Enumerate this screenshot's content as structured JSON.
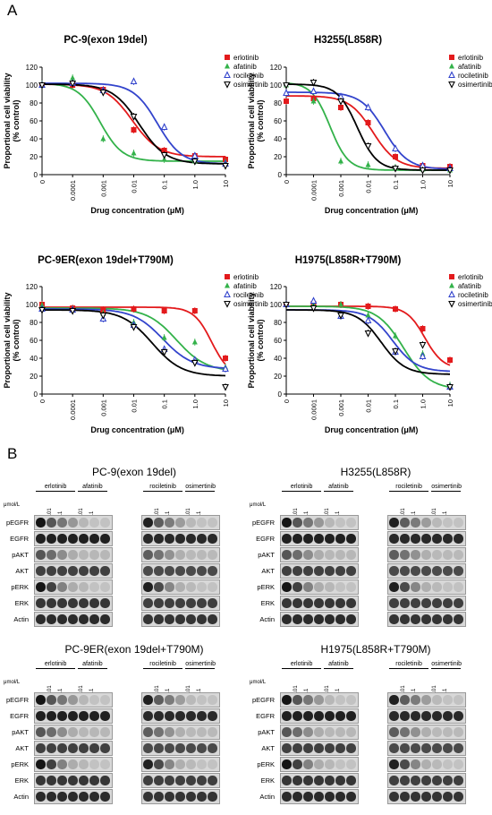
{
  "panel_labels": {
    "a": "A",
    "b": "B"
  },
  "chart_data": [
    {
      "type": "line",
      "title": "PC-9(exon 19del)",
      "xlabel": "Drug concentration (μM)",
      "ylabel_line1": "Proportional cell viability",
      "ylabel_line2": "(% control)",
      "x_ticks": [
        "0",
        "0.0001",
        "0.001",
        "0.01",
        "0.1",
        "1.0",
        "10"
      ],
      "y_ticks": [
        0,
        20,
        40,
        60,
        80,
        100,
        120
      ],
      "ylim": [
        0,
        120
      ],
      "x_scale": "log",
      "legend": "top-right",
      "series": [
        {
          "name": "erlotinib",
          "color": "#e31a1c",
          "marker": "square",
          "x": [
            0,
            0.0001,
            0.001,
            0.01,
            0.1,
            1,
            10
          ],
          "y": [
            100,
            100,
            95,
            50,
            27,
            21,
            17
          ],
          "fit": {
            "top": 101,
            "bottom": 20,
            "ic50": 0.009,
            "hill": 1.0
          }
        },
        {
          "name": "afatinib",
          "color": "#33b24a",
          "marker": "triangle",
          "x": [
            0,
            0.0001,
            0.001,
            0.01,
            0.1,
            1,
            10
          ],
          "y": [
            101,
            108,
            40,
            24,
            17,
            15,
            14
          ],
          "fit": {
            "top": 102,
            "bottom": 15,
            "ic50": 0.0008,
            "hill": 1.2
          }
        },
        {
          "name": "rociletinib",
          "color": "#3344cc",
          "marker": "triangle-open",
          "x": [
            0,
            0.0001,
            0.001,
            0.01,
            0.1,
            1,
            10
          ],
          "y": [
            100,
            102,
            94,
            104,
            53,
            21,
            12
          ],
          "fit": {
            "top": 102,
            "bottom": 12,
            "ic50": 0.06,
            "hill": 1.1
          }
        },
        {
          "name": "osimertinib",
          "color": "#000000",
          "marker": "triangle-down-open",
          "x": [
            0,
            0.0001,
            0.001,
            0.01,
            0.1,
            1,
            10
          ],
          "y": [
            100,
            102,
            92,
            65,
            22,
            15,
            10
          ],
          "fit": {
            "top": 101,
            "bottom": 12,
            "ic50": 0.015,
            "hill": 1.0
          }
        }
      ]
    },
    {
      "type": "line",
      "title": "H3255(L858R)",
      "xlabel": "Drug concentration (μM)",
      "ylabel_line1": "Proportional cell viability",
      "ylabel_line2": "(% control)",
      "x_ticks": [
        "0",
        "0.0001",
        "0.001",
        "0.01",
        "0.1",
        "1.0",
        "10"
      ],
      "y_ticks": [
        0,
        20,
        40,
        60,
        80,
        100,
        120
      ],
      "ylim": [
        0,
        120
      ],
      "x_scale": "log",
      "legend": "top-right",
      "series": [
        {
          "name": "erlotinib",
          "color": "#e31a1c",
          "marker": "square",
          "x": [
            0,
            0.0001,
            0.001,
            0.01,
            0.1,
            1,
            10
          ],
          "y": [
            82,
            85,
            75,
            58,
            20,
            10,
            9
          ],
          "fit": {
            "top": 88,
            "bottom": 7,
            "ic50": 0.015,
            "hill": 1.0
          }
        },
        {
          "name": "afatinib",
          "color": "#33b24a",
          "marker": "triangle",
          "x": [
            0,
            0.0001,
            0.001,
            0.01,
            0.1,
            1,
            10
          ],
          "y": [
            100,
            82,
            15,
            11,
            8,
            6,
            5
          ],
          "fit": {
            "top": 103,
            "bottom": 5,
            "ic50": 0.0004,
            "hill": 1.3
          }
        },
        {
          "name": "rociletinib",
          "color": "#3344cc",
          "marker": "triangle-open",
          "x": [
            0,
            0.0001,
            0.001,
            0.01,
            0.1,
            1,
            10
          ],
          "y": [
            91,
            93,
            87,
            75,
            29,
            10,
            7
          ],
          "fit": {
            "top": 92,
            "bottom": 6,
            "ic50": 0.04,
            "hill": 1.0
          }
        },
        {
          "name": "osimertinib",
          "color": "#000000",
          "marker": "triangle-down-open",
          "x": [
            0,
            0.0001,
            0.001,
            0.01,
            0.1,
            1,
            10
          ],
          "y": [
            100,
            103,
            82,
            32,
            7,
            5,
            5
          ],
          "fit": {
            "top": 101,
            "bottom": 5,
            "ic50": 0.004,
            "hill": 1.2
          }
        }
      ]
    },
    {
      "type": "line",
      "title": "PC-9ER(exon 19del+T790M)",
      "xlabel": "Drug concentration (μM)",
      "ylabel_line1": "Proportional cell viability",
      "ylabel_line2": "(% control)",
      "x_ticks": [
        "0",
        "0.0001",
        "0.001",
        "0.01",
        "0.1",
        "1.0",
        "10"
      ],
      "y_ticks": [
        0,
        20,
        40,
        60,
        80,
        100,
        120
      ],
      "ylim": [
        0,
        120
      ],
      "x_scale": "log",
      "legend": "top-right",
      "series": [
        {
          "name": "erlotinib",
          "color": "#e31a1c",
          "marker": "square",
          "x": [
            0,
            0.0001,
            0.001,
            0.01,
            0.1,
            1,
            10
          ],
          "y": [
            100,
            96,
            94,
            95,
            93,
            93,
            40
          ],
          "fit": {
            "top": 97,
            "bottom": 20,
            "ic50": 3.5,
            "hill": 1.5
          }
        },
        {
          "name": "afatinib",
          "color": "#33b24a",
          "marker": "triangle",
          "x": [
            0,
            0.0001,
            0.001,
            0.01,
            0.1,
            1,
            10
          ],
          "y": [
            99,
            95,
            90,
            80,
            63,
            58,
            30
          ],
          "fit": {
            "top": 96,
            "bottom": 25,
            "ic50": 0.25,
            "hill": 0.9
          }
        },
        {
          "name": "rociletinib",
          "color": "#3344cc",
          "marker": "triangle-open",
          "x": [
            0,
            0.0001,
            0.001,
            0.01,
            0.1,
            1,
            10
          ],
          "y": [
            95,
            94,
            84,
            77,
            50,
            38,
            28
          ],
          "fit": {
            "top": 95,
            "bottom": 28,
            "ic50": 0.09,
            "hill": 0.9
          }
        },
        {
          "name": "osimertinib",
          "color": "#000000",
          "marker": "triangle-down-open",
          "x": [
            0,
            0.0001,
            0.001,
            0.01,
            0.1,
            1,
            10
          ],
          "y": [
            94,
            93,
            88,
            75,
            47,
            35,
            8
          ],
          "fit": {
            "top": 94,
            "bottom": 20,
            "ic50": 0.04,
            "hill": 0.9
          }
        }
      ]
    },
    {
      "type": "line",
      "title": "H1975(L858R+T790M)",
      "xlabel": "Drug concentration (μM)",
      "ylabel_line1": "Proportional cell viability",
      "ylabel_line2": "(% control)",
      "x_ticks": [
        "0",
        "0.0001",
        "0.001",
        "0.01",
        "0.1",
        "1.0",
        "10"
      ],
      "y_ticks": [
        0,
        20,
        40,
        60,
        80,
        100,
        120
      ],
      "ylim": [
        0,
        120
      ],
      "x_scale": "log",
      "legend": "top-right",
      "series": [
        {
          "name": "erlotinib",
          "color": "#e31a1c",
          "marker": "square",
          "x": [
            0,
            0.0001,
            0.001,
            0.01,
            0.1,
            1,
            10
          ],
          "y": [
            100,
            101,
            100,
            98,
            95,
            73,
            38
          ],
          "fit": {
            "top": 98,
            "bottom": 28,
            "ic50": 1.2,
            "hill": 1.3
          }
        },
        {
          "name": "afatinib",
          "color": "#33b24a",
          "marker": "triangle",
          "x": [
            0,
            0.0001,
            0.001,
            0.01,
            0.1,
            1,
            10
          ],
          "y": [
            100,
            100,
            100,
            88,
            65,
            45,
            10
          ],
          "fit": {
            "top": 98,
            "bottom": 5,
            "ic50": 0.2,
            "hill": 0.9
          }
        },
        {
          "name": "rociletinib",
          "color": "#3344cc",
          "marker": "triangle-open",
          "x": [
            0,
            0.0001,
            0.001,
            0.01,
            0.1,
            1,
            10
          ],
          "y": [
            100,
            104,
            87,
            82,
            47,
            42,
            8
          ],
          "fit": {
            "top": 94,
            "bottom": 25,
            "ic50": 0.08,
            "hill": 1.0
          }
        },
        {
          "name": "osimertinib",
          "color": "#000000",
          "marker": "triangle-down-open",
          "x": [
            0,
            0.0001,
            0.001,
            0.01,
            0.1,
            1,
            10
          ],
          "y": [
            100,
            96,
            88,
            68,
            48,
            55,
            8
          ],
          "fit": {
            "top": 94,
            "bottom": 22,
            "ic50": 0.03,
            "hill": 1.0
          }
        }
      ]
    }
  ],
  "blots": [
    {
      "title": "PC-9(exon 19del)",
      "unit": "μmol/L",
      "left_groups": [
        {
          "name": "erlotinib",
          "conc": [
            "0",
            "0.01",
            "0.1",
            "1"
          ]
        },
        {
          "name": "afatinib",
          "conc": [
            "0.01",
            "0.1",
            "1"
          ]
        }
      ],
      "right_groups": [
        {
          "name": "rociletinib",
          "conc": [
            "0",
            "0.01",
            "0.1",
            "1"
          ]
        },
        {
          "name": "osimertinib",
          "conc": [
            "0.01",
            "0.1",
            "1"
          ]
        }
      ],
      "proteins": [
        "pEGFR",
        "EGFR",
        "pAKT",
        "AKT",
        "pERK",
        "ERK",
        "Actin"
      ]
    },
    {
      "title": "H3255(L858R)",
      "unit": "μmol/L",
      "left_groups": [
        {
          "name": "erlotinib",
          "conc": [
            "0",
            "0.01",
            "0.1",
            "1"
          ]
        },
        {
          "name": "afatinib",
          "conc": [
            "0.01",
            "0.1",
            "1"
          ]
        }
      ],
      "right_groups": [
        {
          "name": "rociletinib",
          "conc": [
            "0",
            "0.01",
            "0.1",
            "1"
          ]
        },
        {
          "name": "osimertinib",
          "conc": [
            "0.01",
            "0.1",
            "1"
          ]
        }
      ],
      "proteins": [
        "pEGFR",
        "EGFR",
        "pAKT",
        "AKT",
        "pERK",
        "ERK",
        "Actin"
      ]
    },
    {
      "title": "PC-9ER(exon 19del+T790M)",
      "unit": "μmol/L",
      "left_groups": [
        {
          "name": "erlotinib",
          "conc": [
            "0",
            "0.01",
            "0.1",
            "1"
          ]
        },
        {
          "name": "afatinib",
          "conc": [
            "0.01",
            "0.1",
            "1"
          ]
        }
      ],
      "right_groups": [
        {
          "name": "rociletinib",
          "conc": [
            "0",
            "0.01",
            "0.1",
            "1"
          ]
        },
        {
          "name": "osimertinib",
          "conc": [
            "0.01",
            "0.1",
            "1"
          ]
        }
      ],
      "proteins": [
        "pEGFR",
        "EGFR",
        "pAKT",
        "AKT",
        "pERK",
        "ERK",
        "Actin"
      ]
    },
    {
      "title": "H1975(L858R+T790M)",
      "unit": "μmol/L",
      "left_groups": [
        {
          "name": "erlotinib",
          "conc": [
            "0",
            "0.01",
            "0.1",
            "1"
          ]
        },
        {
          "name": "afatinib",
          "conc": [
            "0.01",
            "0.1",
            "1"
          ]
        }
      ],
      "right_groups": [
        {
          "name": "rociletinib",
          "conc": [
            "0",
            "0.01",
            "0.1",
            "1"
          ]
        },
        {
          "name": "osimertinib",
          "conc": [
            "0.01",
            "0.1",
            "1"
          ]
        }
      ],
      "proteins": [
        "pEGFR",
        "EGFR",
        "pAKT",
        "AKT",
        "pERK",
        "ERK",
        "Actin"
      ]
    }
  ]
}
